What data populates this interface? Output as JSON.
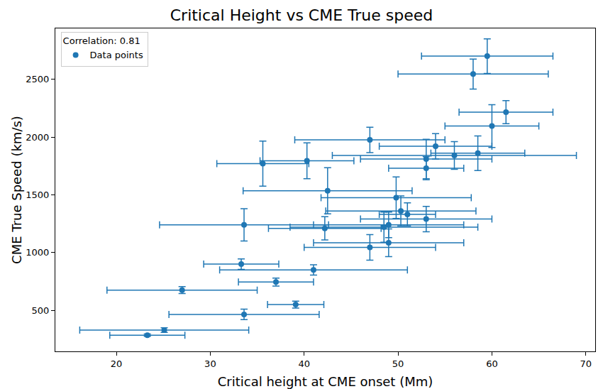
{
  "chart_data": {
    "type": "scatter",
    "title": "Critical Height vs CME True speed",
    "x_label": "Critical height at CME onset (Mm)",
    "y_label": "CME True Speed (km/s)",
    "legend": "upper left",
    "legend_title": "Correlation: 0.81",
    "grid": false,
    "marker": "circle",
    "xlim": [
      13.5,
      71
    ],
    "xticks": [
      20,
      30,
      40,
      50,
      60,
      70
    ],
    "ylim": [
      145,
      2940
    ],
    "yticks": [
      500,
      1000,
      1500,
      2000,
      2500
    ],
    "series": [
      {
        "name": "Data points",
        "color": "#1f77b4",
        "x": [
          23.3,
          25.1,
          27,
          33.6,
          33.3,
          33.6,
          35.6,
          40.3,
          37,
          39.1,
          41,
          42.2,
          42.5,
          47,
          47,
          48.5,
          49,
          49,
          49.8,
          50.3,
          51,
          53,
          53,
          53,
          54,
          56,
          58.5,
          58,
          59.5,
          60,
          61.5
        ],
        "values": [
          285,
          330,
          675,
          465,
          900,
          1240,
          1770,
          1795,
          745,
          550,
          850,
          1210,
          1535,
          1975,
          1045,
          1220,
          1240,
          1085,
          1475,
          1360,
          1330,
          1290,
          1810,
          1730,
          1920,
          1840,
          1860,
          2545,
          2700,
          2095,
          2215
        ],
        "x_errors": [
          4,
          9,
          8,
          8,
          4,
          9,
          4.9,
          5,
          4,
          3,
          10,
          6,
          9,
          8,
          7,
          10,
          8,
          8,
          8,
          8,
          3,
          7,
          7,
          4,
          6,
          13,
          5,
          8,
          7,
          5,
          5
        ],
        "y_errors": [
          10,
          20,
          30,
          45,
          45,
          140,
          195,
          155,
          35,
          30,
          45,
          100,
          200,
          110,
          110,
          130,
          110,
          120,
          180,
          130,
          100,
          110,
          170,
          100,
          110,
          120,
          150,
          130,
          150,
          185,
          100
        ]
      }
    ]
  }
}
